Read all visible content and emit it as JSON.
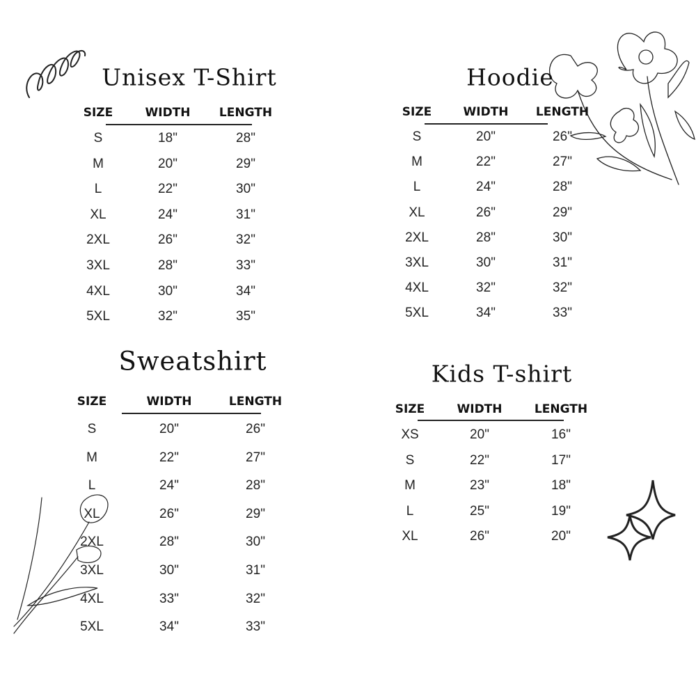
{
  "tables": [
    {
      "title": "Unisex T-Shirt",
      "headers": [
        "SIZE",
        "WIDTH",
        "LENGTH"
      ],
      "rows": [
        [
          "S",
          "18\"",
          "28\""
        ],
        [
          "M",
          "20\"",
          "29\""
        ],
        [
          "L",
          "22\"",
          "30\""
        ],
        [
          "XL",
          "24\"",
          "31\""
        ],
        [
          "2XL",
          "26\"",
          "32\""
        ],
        [
          "3XL",
          "28\"",
          "33\""
        ],
        [
          "4XL",
          "30\"",
          "34\""
        ],
        [
          "5XL",
          "32\"",
          "35\""
        ]
      ]
    },
    {
      "title": "Hoodie",
      "headers": [
        "SIZE",
        "WIDTH",
        "LENGTH"
      ],
      "rows": [
        [
          "S",
          "20\"",
          "26\""
        ],
        [
          "M",
          "22\"",
          "27\""
        ],
        [
          "L",
          "24\"",
          "28\""
        ],
        [
          "XL",
          "26\"",
          "29\""
        ],
        [
          "2XL",
          "28\"",
          "30\""
        ],
        [
          "3XL",
          "30\"",
          "31\""
        ],
        [
          "4XL",
          "32\"",
          "32\""
        ],
        [
          "5XL",
          "34\"",
          "33\""
        ]
      ]
    },
    {
      "title": "Sweatshirt",
      "headers": [
        "SIZE",
        "WIDTH",
        "LENGTH"
      ],
      "rows": [
        [
          "S",
          "20\"",
          "26\""
        ],
        [
          "M",
          "22\"",
          "27\""
        ],
        [
          "L",
          "24\"",
          "28\""
        ],
        [
          "XL",
          "26\"",
          "29\""
        ],
        [
          "2XL",
          "28\"",
          "30\""
        ],
        [
          "3XL",
          "30\"",
          "31\""
        ],
        [
          "4XL",
          "33\"",
          "32\""
        ],
        [
          "5XL",
          "34\"",
          "33\""
        ]
      ]
    },
    {
      "title": "Kids T-shirt",
      "headers": [
        "SIZE",
        "WIDTH",
        "LENGTH"
      ],
      "rows": [
        [
          "XS",
          "20\"",
          "16\""
        ],
        [
          "S",
          "22\"",
          "17\""
        ],
        [
          "M",
          "23\"",
          "18\""
        ],
        [
          "L",
          "25\"",
          "19\""
        ],
        [
          "XL",
          "26\"",
          "20\""
        ]
      ]
    }
  ],
  "decorations": [
    "squiggle-icon",
    "flower-illustration",
    "tulip-illustration",
    "sparkle-icon"
  ]
}
